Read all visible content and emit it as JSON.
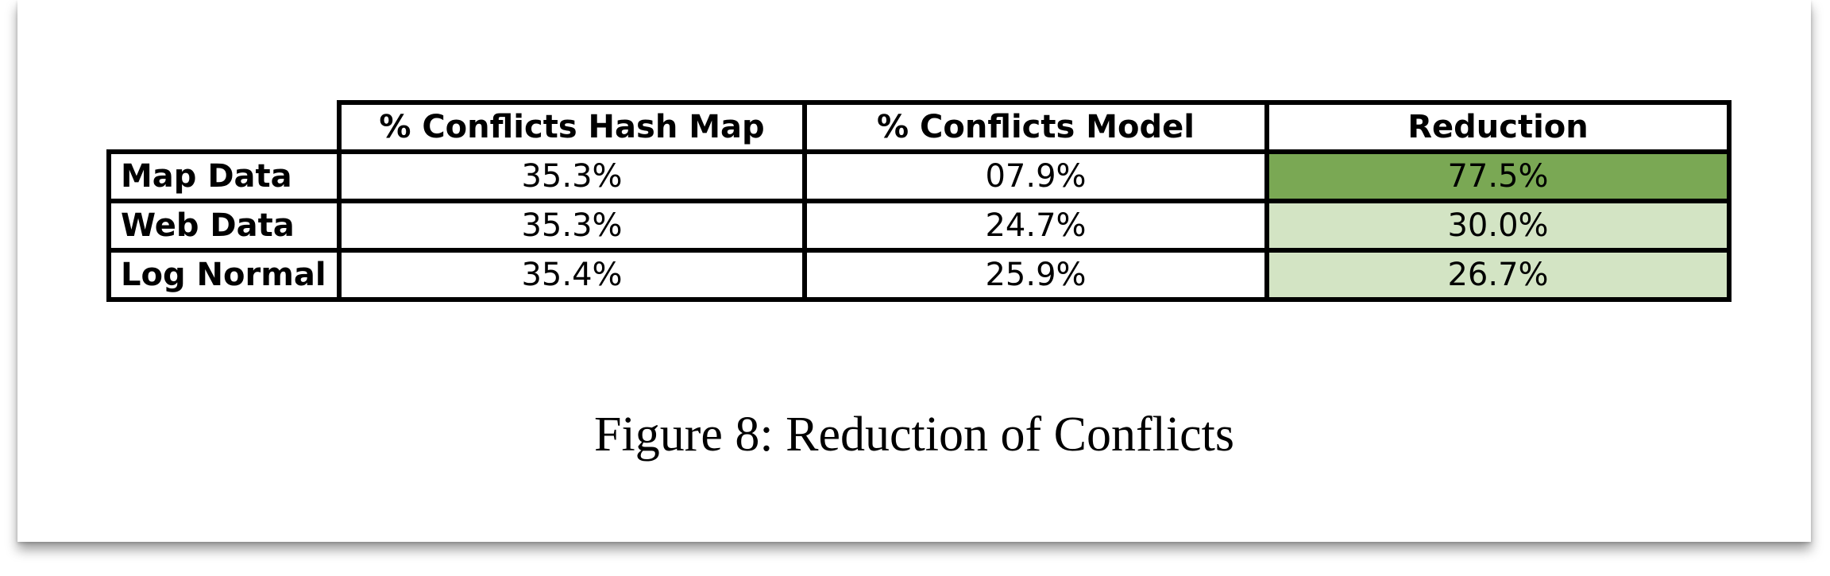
{
  "table": {
    "headers": [
      "% Conflicts Hash Map",
      "% Conflicts Model",
      "Reduction"
    ],
    "rows": [
      {
        "label": "Map Data",
        "hash_map": "35.3%",
        "model": "07.9%",
        "reduction": "77.5%"
      },
      {
        "label": "Web Data",
        "hash_map": "35.3%",
        "model": "24.7%",
        "reduction": "30.0%"
      },
      {
        "label": "Log Normal",
        "hash_map": "35.4%",
        "model": "25.9%",
        "reduction": "26.7%"
      }
    ]
  },
  "colors": {
    "reduction_high": "#7aa854",
    "reduction_low": "#d3e4c4"
  },
  "caption": "Figure 8: Reduction of Conflicts"
}
